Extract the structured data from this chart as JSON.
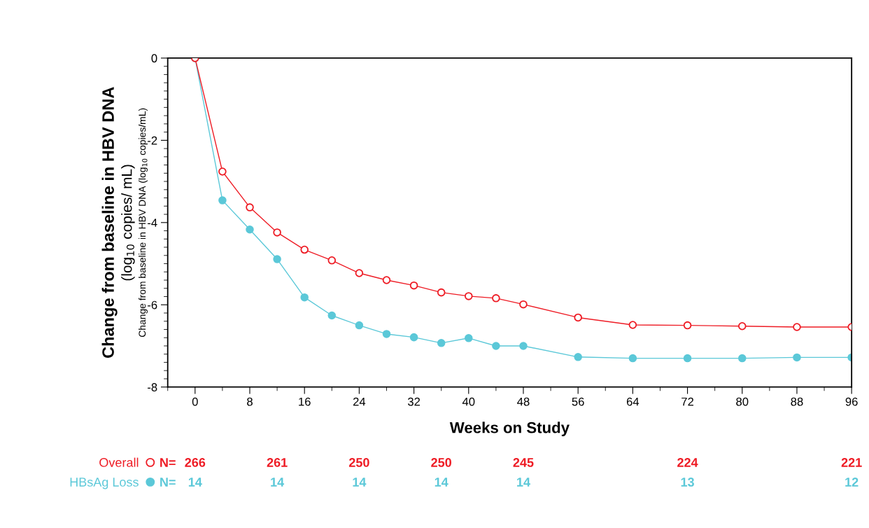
{
  "chart_data": {
    "type": "line",
    "xlabel": "Weeks on Study",
    "ylabel": "Change from baseline in HBV DNA\n(log$_{10}$ copies/ mL)",
    "x": [
      0,
      4,
      8,
      12,
      16,
      20,
      24,
      28,
      32,
      36,
      40,
      44,
      48,
      56,
      64,
      72,
      80,
      88,
      96
    ],
    "series": [
      {
        "name": "Overall",
        "color": "#ee1c25",
        "marker": "circle",
        "values": [
          0,
          -2.76,
          -3.63,
          -4.24,
          -4.66,
          -4.92,
          -5.23,
          -5.4,
          -5.53,
          -5.7,
          -5.79,
          -5.84,
          -5.99,
          -6.31,
          -6.49,
          -6.5,
          -6.52,
          -6.54,
          -6.54
        ]
      },
      {
        "name": "HBsAg Loss",
        "color": "#5bc8d8",
        "marker": "circle",
        "values": [
          0,
          -3.46,
          -4.17,
          -4.89,
          -5.82,
          -6.26,
          -6.5,
          -6.71,
          -6.79,
          -6.93,
          -6.81,
          -7.0,
          -7.0,
          -7.27,
          -7.3,
          -7.3,
          -7.3,
          -7.28,
          -7.28
        ]
      }
    ],
    "xlim": [
      -4,
      96
    ],
    "xticks": [
      0,
      8,
      16,
      24,
      32,
      40,
      48,
      56,
      64,
      72,
      80,
      88,
      96
    ],
    "ylim": [
      -8,
      0
    ],
    "yticks": [
      -8,
      -6,
      -4,
      -2,
      0
    ],
    "grid": false,
    "legend": "bottom left",
    "annotations": [
      "Change from baseline in HBV DNA (log$_{10}$ copies/mL)",
      "N=",
      "266",
      "261",
      "250",
      "250",
      "245",
      "224",
      "221",
      "N=",
      "14",
      "14",
      "14",
      "14",
      "14",
      "13",
      "12"
    ]
  }
}
